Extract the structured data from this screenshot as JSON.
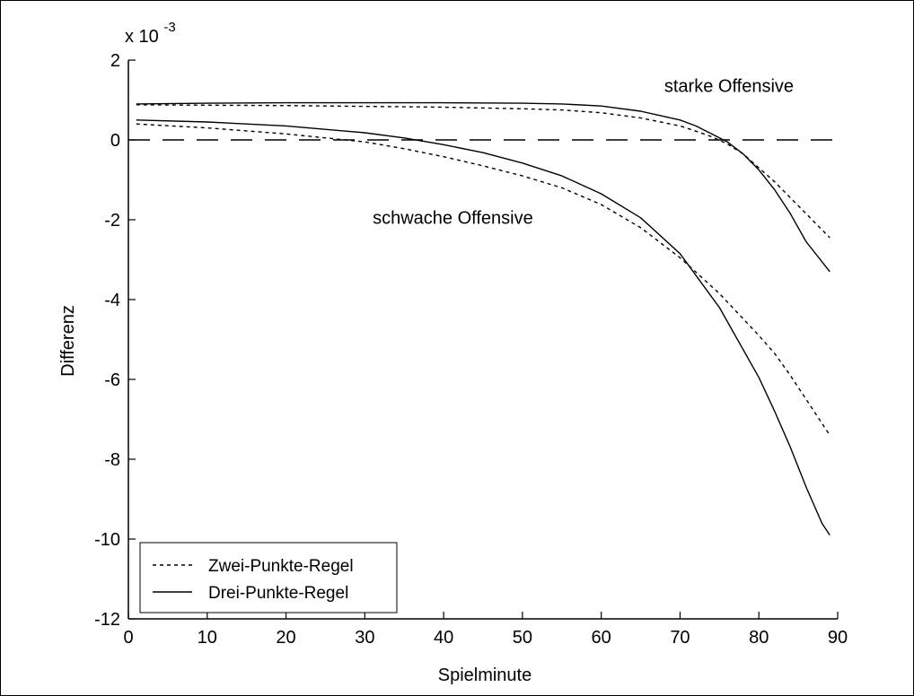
{
  "chart_data": {
    "type": "line",
    "xlabel": "Spielminute",
    "ylabel": "Differenz",
    "exponent_prefix": "x 10",
    "exponent_power": "-3",
    "xlim": [
      0,
      90
    ],
    "ylim": [
      -12,
      2
    ],
    "xticks": [
      0,
      10,
      20,
      30,
      40,
      50,
      60,
      70,
      80,
      90
    ],
    "yticks": [
      2,
      0,
      -2,
      -4,
      -6,
      -8,
      -10,
      -12
    ],
    "grid": false,
    "legend_placement": "bottom-left",
    "legend": [
      {
        "label": "Zwei-Punkte-Regel",
        "style": "dotted"
      },
      {
        "label": "Drei-Punkte-Regel",
        "style": "solid"
      }
    ],
    "reference_line": {
      "y": 0,
      "style": "dashed"
    },
    "annotations": [
      {
        "text": "starke Offensive",
        "x": 68,
        "y": 1.2
      },
      {
        "text": "schwache Offensive",
        "x": 31,
        "y": -2.1
      }
    ],
    "series": [
      {
        "group": "starke Offensive",
        "style": "solid",
        "x": [
          1,
          10,
          20,
          30,
          40,
          50,
          55,
          60,
          65,
          70,
          72,
          74,
          76,
          78,
          80,
          82,
          84,
          86,
          88,
          89
        ],
        "y": [
          0.9,
          0.92,
          0.93,
          0.93,
          0.93,
          0.92,
          0.9,
          0.85,
          0.72,
          0.5,
          0.35,
          0.15,
          -0.05,
          -0.35,
          -0.75,
          -1.25,
          -1.85,
          -2.55,
          -3.05,
          -3.3
        ]
      },
      {
        "group": "starke Offensive",
        "style": "dotted",
        "x": [
          1,
          10,
          20,
          30,
          40,
          50,
          55,
          60,
          65,
          70,
          72,
          74,
          76,
          78,
          80,
          82,
          84,
          86,
          88,
          89
        ],
        "y": [
          0.88,
          0.87,
          0.86,
          0.84,
          0.82,
          0.78,
          0.75,
          0.68,
          0.55,
          0.35,
          0.22,
          0.08,
          -0.1,
          -0.35,
          -0.7,
          -1.05,
          -1.45,
          -1.85,
          -2.25,
          -2.45
        ]
      },
      {
        "group": "schwache Offensive",
        "style": "solid",
        "x": [
          1,
          10,
          20,
          30,
          35,
          40,
          45,
          50,
          55,
          60,
          65,
          70,
          75,
          80,
          82,
          84,
          86,
          88,
          89
        ],
        "y": [
          0.5,
          0.45,
          0.35,
          0.18,
          0.05,
          -0.12,
          -0.32,
          -0.58,
          -0.9,
          -1.35,
          -1.95,
          -2.85,
          -4.2,
          -5.95,
          -6.8,
          -7.7,
          -8.7,
          -9.6,
          -9.9
        ]
      },
      {
        "group": "schwache Offensive",
        "style": "dotted",
        "x": [
          1,
          10,
          20,
          30,
          35,
          40,
          45,
          50,
          55,
          60,
          65,
          70,
          75,
          80,
          82,
          84,
          86,
          88,
          89
        ],
        "y": [
          0.4,
          0.3,
          0.15,
          -0.05,
          -0.22,
          -0.42,
          -0.65,
          -0.9,
          -1.2,
          -1.62,
          -2.2,
          -2.95,
          -3.85,
          -4.9,
          -5.35,
          -5.9,
          -6.5,
          -7.1,
          -7.4
        ]
      }
    ]
  }
}
